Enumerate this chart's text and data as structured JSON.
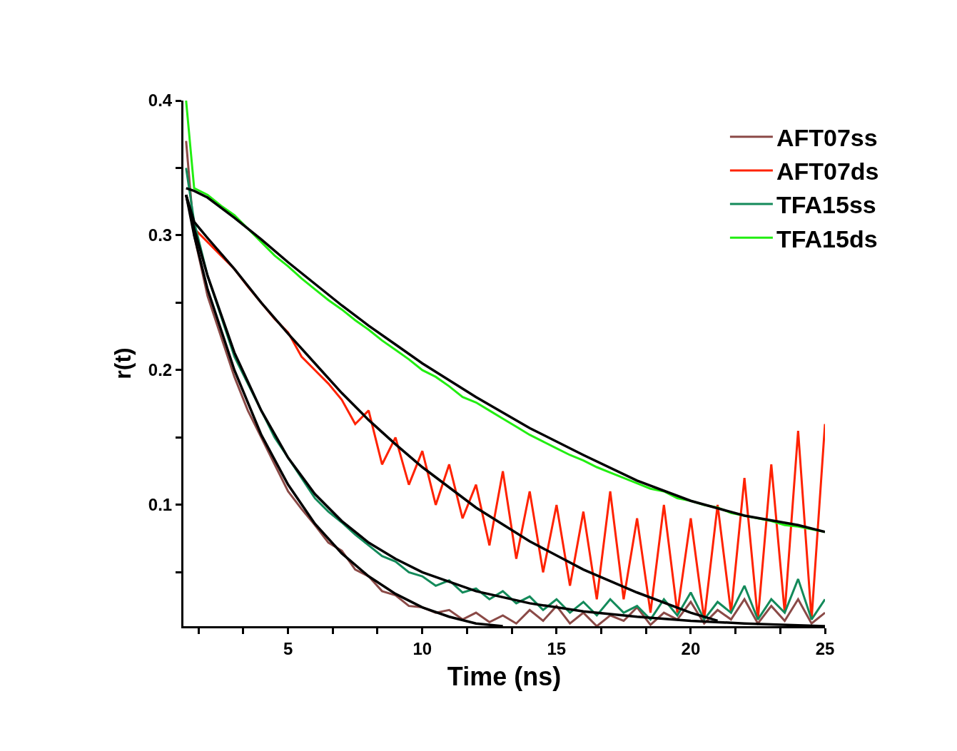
{
  "chart_data": {
    "type": "line",
    "xlabel": "Time (ns)",
    "ylabel": "r(t)",
    "xlim": [
      1.1,
      25
    ],
    "ylim": [
      0.01,
      0.4
    ],
    "xticks": [
      {
        "value": 1.67,
        "label": null
      },
      {
        "value": 3.33,
        "label": null
      },
      5,
      {
        "value": 6.67,
        "label": null
      },
      {
        "value": 8.33,
        "label": null
      },
      10,
      {
        "value": 11.67,
        "label": null
      },
      {
        "value": 13.33,
        "label": null
      },
      15,
      {
        "value": 16.67,
        "label": null
      },
      {
        "value": 18.33,
        "label": null
      },
      20,
      {
        "value": 21.67,
        "label": null
      },
      {
        "value": 23.33,
        "label": null
      },
      25
    ],
    "yticks": [
      {
        "value": 0.05,
        "label": null
      },
      0.1,
      {
        "value": 0.15,
        "label": null
      },
      0.2,
      {
        "value": 0.25,
        "label": null
      },
      0.3,
      {
        "value": 0.35,
        "label": null
      },
      0.4
    ],
    "legend": "top right",
    "marker": "none",
    "line_style": "solid",
    "x": [
      1.2,
      1.5,
      2,
      2.5,
      3,
      3.5,
      4,
      4.5,
      5,
      5.5,
      6,
      6.5,
      7,
      7.5,
      8,
      8.5,
      9,
      9.5,
      10,
      10.5,
      11,
      11.5,
      12,
      12.5,
      13,
      13.5,
      14,
      14.5,
      15,
      15.5,
      16,
      16.5,
      17,
      17.5,
      18,
      18.5,
      19,
      19.5,
      20,
      20.5,
      21,
      21.5,
      22,
      22.5,
      23,
      23.5,
      24,
      24.5,
      25
    ],
    "series": [
      {
        "name": "AFT07ss",
        "color": "#8b4a47",
        "values": [
          0.37,
          0.3,
          0.255,
          0.225,
          0.195,
          0.17,
          0.15,
          0.13,
          0.11,
          0.097,
          0.085,
          0.072,
          0.066,
          0.052,
          0.047,
          0.036,
          0.033,
          0.025,
          0.024,
          0.02,
          0.022,
          0.015,
          0.02,
          0.013,
          0.018,
          0.012,
          0.022,
          0.014,
          0.025,
          0.012,
          0.02,
          0.01,
          0.018,
          0.014,
          0.024,
          0.011,
          0.02,
          0.015,
          0.028,
          0.012,
          0.022,
          0.015,
          0.03,
          0.012,
          0.025,
          0.014,
          0.03,
          0.012,
          0.02
        ]
      },
      {
        "name": "AFT07ds",
        "color": "#ff2200",
        "values": [
          0.33,
          0.305,
          0.295,
          0.285,
          0.275,
          0.262,
          0.25,
          0.238,
          0.228,
          0.21,
          0.2,
          0.19,
          0.178,
          0.16,
          0.17,
          0.13,
          0.15,
          0.115,
          0.14,
          0.1,
          0.13,
          0.09,
          0.115,
          0.07,
          0.125,
          0.06,
          0.11,
          0.05,
          0.1,
          0.04,
          0.095,
          0.03,
          0.11,
          0.03,
          0.09,
          0.02,
          0.1,
          0.02,
          0.09,
          0.015,
          0.1,
          0.02,
          0.12,
          0.015,
          0.13,
          0.02,
          0.155,
          0.015,
          0.16
        ]
      },
      {
        "name": "TFA15ss",
        "color": "#138a5a",
        "values": [
          0.35,
          0.31,
          0.27,
          0.24,
          0.21,
          0.19,
          0.17,
          0.15,
          0.135,
          0.12,
          0.105,
          0.095,
          0.087,
          0.078,
          0.07,
          0.062,
          0.058,
          0.05,
          0.047,
          0.04,
          0.044,
          0.035,
          0.038,
          0.03,
          0.036,
          0.027,
          0.032,
          0.022,
          0.03,
          0.02,
          0.028,
          0.018,
          0.03,
          0.02,
          0.025,
          0.015,
          0.03,
          0.018,
          0.035,
          0.015,
          0.028,
          0.02,
          0.04,
          0.015,
          0.03,
          0.02,
          0.045,
          0.015,
          0.03
        ]
      },
      {
        "name": "TFA15ds",
        "color": "#22ee11",
        "values": [
          0.4,
          0.335,
          0.33,
          0.322,
          0.315,
          0.305,
          0.295,
          0.285,
          0.277,
          0.268,
          0.26,
          0.252,
          0.245,
          0.237,
          0.23,
          0.222,
          0.215,
          0.208,
          0.2,
          0.195,
          0.188,
          0.18,
          0.176,
          0.17,
          0.164,
          0.158,
          0.152,
          0.147,
          0.142,
          0.137,
          0.133,
          0.128,
          0.124,
          0.12,
          0.116,
          0.112,
          0.11,
          0.105,
          0.103,
          0.1,
          0.098,
          0.094,
          0.092,
          0.09,
          0.088,
          0.085,
          0.084,
          0.082,
          0.08
        ]
      },
      {
        "color": "#000000",
        "x": [
          1.2,
          1.5,
          2,
          3,
          4,
          5,
          6,
          7,
          8,
          9,
          10,
          11,
          12,
          13
        ],
        "values": [
          0.33,
          0.3,
          0.26,
          0.2,
          0.152,
          0.115,
          0.086,
          0.064,
          0.047,
          0.034,
          0.024,
          0.017,
          0.012,
          0.01
        ]
      },
      {
        "color": "#000000",
        "x": [
          1.2,
          1.5,
          2,
          3,
          4,
          5,
          6,
          7,
          8,
          9,
          10,
          12,
          14,
          16,
          18,
          20,
          21
        ],
        "values": [
          0.33,
          0.31,
          0.298,
          0.275,
          0.25,
          0.227,
          0.205,
          0.183,
          0.163,
          0.145,
          0.128,
          0.098,
          0.073,
          0.052,
          0.035,
          0.02,
          0.014
        ]
      },
      {
        "color": "#000000",
        "x": [
          1.2,
          1.5,
          2,
          3,
          4,
          5,
          6,
          7,
          8,
          9,
          10,
          12,
          14,
          16,
          18,
          20,
          22,
          25
        ],
        "values": [
          0.33,
          0.305,
          0.27,
          0.213,
          0.17,
          0.135,
          0.108,
          0.088,
          0.072,
          0.06,
          0.05,
          0.036,
          0.027,
          0.021,
          0.017,
          0.014,
          0.012,
          0.01
        ]
      },
      {
        "color": "#000000",
        "x": [
          1.2,
          1.5,
          2,
          3,
          4,
          5,
          6,
          7,
          8,
          9,
          10,
          12,
          14,
          16,
          18,
          20,
          22,
          24,
          25
        ],
        "values": [
          0.335,
          0.333,
          0.328,
          0.313,
          0.297,
          0.28,
          0.264,
          0.248,
          0.233,
          0.219,
          0.205,
          0.18,
          0.157,
          0.137,
          0.118,
          0.103,
          0.092,
          0.085,
          0.08
        ]
      }
    ]
  }
}
